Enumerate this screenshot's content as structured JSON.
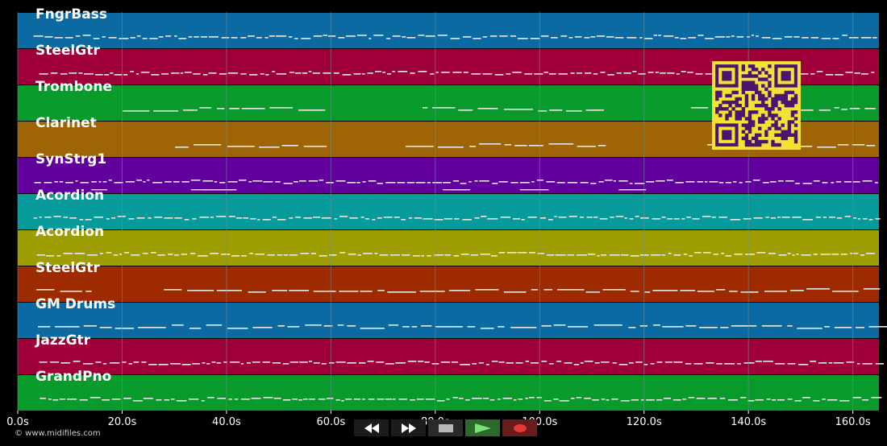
{
  "copyright": "© www.midifiles.com",
  "colors": {
    "grid": "#6f8f99",
    "note": "#e8e8e8",
    "qr_bg": "#f5e134",
    "qr_fg": "#4a1570"
  },
  "transport": {
    "rewind_icon": "rewind-icon",
    "fast_forward_icon": "fast-forward-icon",
    "stop_icon": "stop-icon",
    "play_icon": "play-icon",
    "record_icon": "record-icon"
  },
  "chart_data": {
    "type": "piano-roll",
    "xlim": [
      0,
      165
    ],
    "x_ticks": [
      0,
      20,
      40,
      60,
      80,
      100,
      120,
      140,
      160
    ],
    "x_tick_labels": [
      "0.0s",
      "20.0s",
      "40.0s",
      "60.0s",
      "80.0s",
      "100.0s",
      "120.0s",
      "140.0s",
      "160.0s"
    ],
    "tracks": [
      {
        "name": "FngrBass",
        "color": "#0a6aa1"
      },
      {
        "name": "SteelGtr",
        "color": "#a0003a"
      },
      {
        "name": "Trombone",
        "color": "#089a2b"
      },
      {
        "name": "Clarinet",
        "color": "#9e6405"
      },
      {
        "name": "SynStrg1",
        "color": "#62009e"
      },
      {
        "name": "Acordion",
        "color": "#069a9a"
      },
      {
        "name": "Acordion",
        "color": "#9e9e03"
      },
      {
        "name": "SteelGtr",
        "color": "#9e2a00"
      },
      {
        "name": "GM Drums",
        "color": "#0a6aa1"
      },
      {
        "name": "JazzGtr",
        "color": "#a0003a"
      },
      {
        "name": "GrandPno",
        "color": "#089a2b"
      }
    ]
  }
}
